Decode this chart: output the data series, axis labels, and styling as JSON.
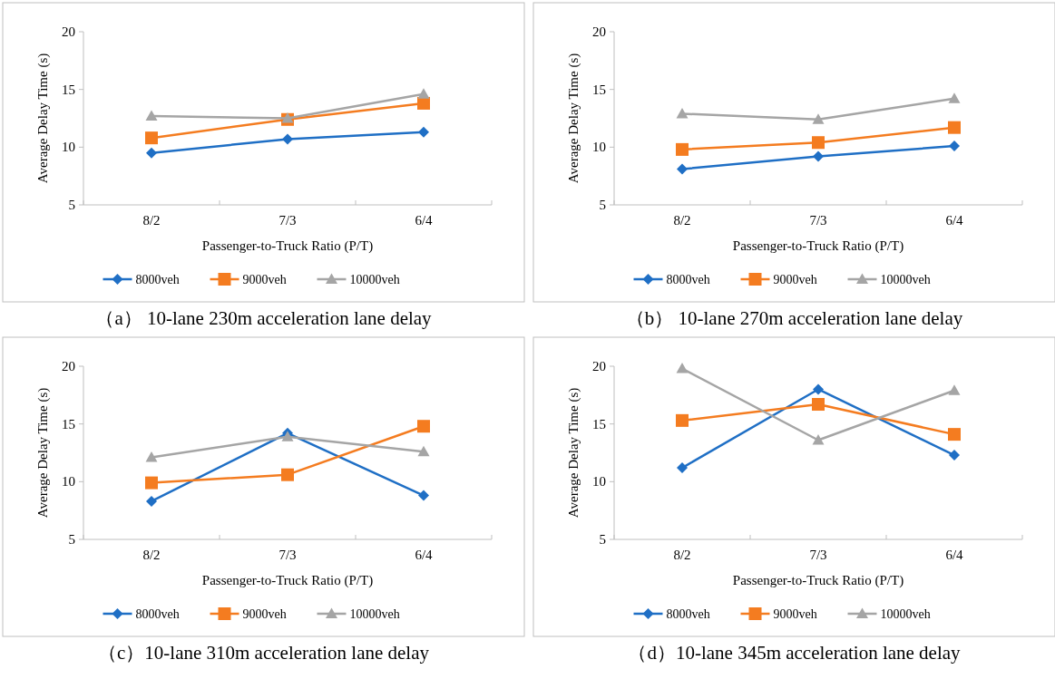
{
  "chart_data": [
    {
      "type": "line",
      "title": "（a） 10-lane 230m acceleration lane delay",
      "xlabel": "Passenger-to-Truck Ratio (P/T)",
      "ylabel": "Average Delay Time (s)",
      "categories": [
        "8/2",
        "7/3",
        "6/4"
      ],
      "ylim": [
        5,
        20
      ],
      "yticks": [
        5,
        10,
        15,
        20
      ],
      "legend": "bottom",
      "series": [
        {
          "name": "8000veh",
          "color": "#1f6fc5",
          "marker": "diamond",
          "values": [
            9.5,
            10.7,
            11.3
          ]
        },
        {
          "name": "9000veh",
          "color": "#f47c20",
          "marker": "square",
          "values": [
            10.8,
            12.4,
            13.8
          ]
        },
        {
          "name": "10000veh",
          "color": "#a5a5a5",
          "marker": "triangle",
          "values": [
            12.7,
            12.5,
            14.6
          ]
        }
      ]
    },
    {
      "type": "line",
      "title": "（b） 10-lane 270m acceleration lane delay",
      "xlabel": "Passenger-to-Truck Ratio (P/T)",
      "ylabel": "Average Delay Time (s)",
      "categories": [
        "8/2",
        "7/3",
        "6/4"
      ],
      "ylim": [
        5,
        20
      ],
      "yticks": [
        5,
        10,
        15,
        20
      ],
      "legend": "bottom",
      "series": [
        {
          "name": "8000veh",
          "color": "#1f6fc5",
          "marker": "diamond",
          "values": [
            8.1,
            9.2,
            10.1
          ]
        },
        {
          "name": "9000veh",
          "color": "#f47c20",
          "marker": "square",
          "values": [
            9.8,
            10.4,
            11.7
          ]
        },
        {
          "name": "10000veh",
          "color": "#a5a5a5",
          "marker": "triangle",
          "values": [
            12.9,
            12.4,
            14.2
          ]
        }
      ]
    },
    {
      "type": "line",
      "title": "（c）10-lane 310m acceleration lane delay",
      "xlabel": "Passenger-to-Truck Ratio (P/T)",
      "ylabel": "Average Delay Time (s)",
      "categories": [
        "8/2",
        "7/3",
        "6/4"
      ],
      "ylim": [
        5,
        20
      ],
      "yticks": [
        5,
        10,
        15,
        20
      ],
      "legend": "bottom",
      "series": [
        {
          "name": "8000veh",
          "color": "#1f6fc5",
          "marker": "diamond",
          "values": [
            8.3,
            14.2,
            8.8
          ]
        },
        {
          "name": "9000veh",
          "color": "#f47c20",
          "marker": "square",
          "values": [
            9.9,
            10.6,
            14.8
          ]
        },
        {
          "name": "10000veh",
          "color": "#a5a5a5",
          "marker": "triangle",
          "values": [
            12.1,
            13.9,
            12.6
          ]
        }
      ]
    },
    {
      "type": "line",
      "title": "（d）10-lane 345m acceleration lane delay",
      "xlabel": "Passenger-to-Truck Ratio (P/T)",
      "ylabel": "Average Delay Time (s)",
      "categories": [
        "8/2",
        "7/3",
        "6/4"
      ],
      "ylim": [
        5,
        20
      ],
      "yticks": [
        5,
        10,
        15,
        20
      ],
      "legend": "bottom",
      "series": [
        {
          "name": "8000veh",
          "color": "#1f6fc5",
          "marker": "diamond",
          "values": [
            11.2,
            18.0,
            12.3
          ]
        },
        {
          "name": "9000veh",
          "color": "#f47c20",
          "marker": "square",
          "values": [
            15.3,
            16.7,
            14.1
          ]
        },
        {
          "name": "10000veh",
          "color": "#a5a5a5",
          "marker": "triangle",
          "values": [
            19.8,
            13.6,
            17.9
          ]
        }
      ]
    }
  ]
}
